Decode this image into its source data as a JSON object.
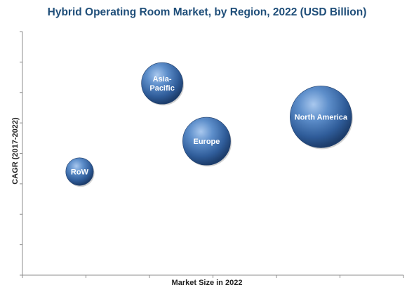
{
  "chart_data": {
    "type": "bubble",
    "title": "Hybrid Operating Room Market, by Region, 2022 (USD Billion)",
    "xlabel": "Market Size in 2022",
    "ylabel": "CAGR (2017-2022)",
    "xlim": [
      0,
      6
    ],
    "ylim": [
      0,
      8
    ],
    "grid": false,
    "legend": "none",
    "bubble_color": "#3f6fb0",
    "series": [
      {
        "label": "North America",
        "x": 4.7,
        "y": 5.2,
        "size": 1.0
      },
      {
        "label": "Europe",
        "x": 2.9,
        "y": 4.4,
        "size": 0.6
      },
      {
        "label": "Asia-Pacific",
        "x": 2.2,
        "y": 6.3,
        "size": 0.45
      },
      {
        "label": "RoW",
        "x": 0.9,
        "y": 3.4,
        "size": 0.2
      }
    ]
  }
}
